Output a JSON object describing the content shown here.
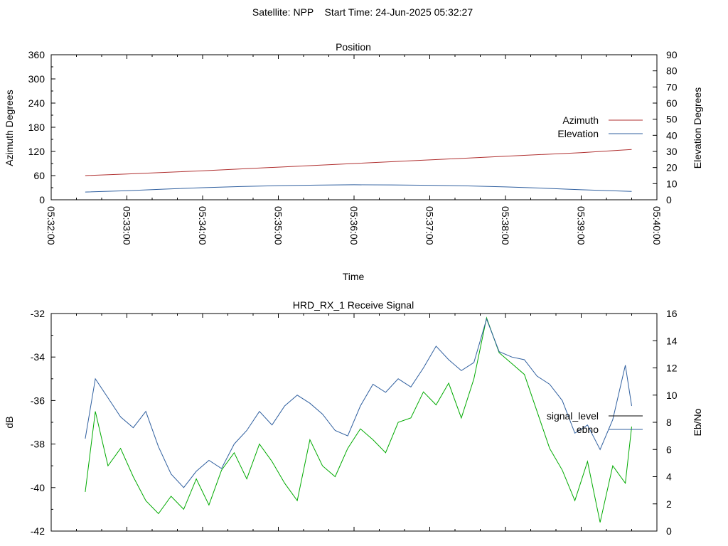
{
  "header": {
    "title": "Satellite: NPP    Start Time: 24-Jun-2025 05:32:27"
  },
  "chart_data": [
    {
      "type": "line",
      "title": "Position",
      "xlabel": "Time",
      "ylabel_left": "Azimuth Degrees",
      "ylabel_right": "Elevation Degrees",
      "x_ticks": [
        "05:32:00",
        "05:33:00",
        "05:34:00",
        "05:35:00",
        "05:36:00",
        "05:37:00",
        "05:38:00",
        "05:39:00",
        "05:40:00"
      ],
      "y_left_ticks": [
        "0",
        "60",
        "120",
        "180",
        "240",
        "300",
        "360"
      ],
      "y_right_ticks": [
        "0",
        "10",
        "20",
        "30",
        "40",
        "50",
        "60",
        "70",
        "80",
        "90"
      ],
      "ylim_left": [
        0,
        360
      ],
      "ylim_right": [
        0,
        90
      ],
      "xlim": [
        "05:32:00",
        "05:40:00"
      ],
      "grid": false,
      "legend_position": "right",
      "series": [
        {
          "name": "Azimuth",
          "axis": "left",
          "color": "#b03030",
          "x": [
            "05:32:27",
            "05:33:00",
            "05:34:00",
            "05:35:00",
            "05:36:00",
            "05:37:00",
            "05:38:00",
            "05:39:00",
            "05:39:40"
          ],
          "values": [
            60,
            64,
            72,
            81,
            90,
            99,
            108,
            117,
            125
          ]
        },
        {
          "name": "Elevation",
          "axis": "right",
          "color": "#2f5f9f",
          "x": [
            "05:32:27",
            "05:33:00",
            "05:33:30",
            "05:34:00",
            "05:34:30",
            "05:35:00",
            "05:35:30",
            "05:36:00",
            "05:36:30",
            "05:37:00",
            "05:37:30",
            "05:38:00",
            "05:38:30",
            "05:39:00",
            "05:39:40"
          ],
          "values": [
            4.8,
            5.6,
            6.6,
            7.5,
            8.2,
            8.8,
            9.1,
            9.3,
            9.2,
            9.0,
            8.6,
            8.0,
            7.2,
            6.2,
            5.2
          ]
        }
      ]
    },
    {
      "type": "line",
      "title": "HRD_RX_1 Receive Signal",
      "ylabel_left": "dB",
      "ylabel_right": "Eb/No",
      "y_left_ticks": [
        "-42",
        "-40",
        "-38",
        "-36",
        "-34",
        "-32"
      ],
      "y_right_ticks": [
        "0",
        "2",
        "4",
        "6",
        "8",
        "10",
        "12",
        "14",
        "16"
      ],
      "ylim_left": [
        -42,
        -32
      ],
      "ylim_right": [
        0,
        16
      ],
      "xlim": [
        "05:32:00",
        "05:40:00"
      ],
      "grid": false,
      "legend_position": "right",
      "series": [
        {
          "name": "signal_level",
          "axis": "left",
          "color": "#00aa00",
          "x": [
            "05:32:27",
            "05:32:35",
            "05:32:45",
            "05:32:55",
            "05:33:05",
            "05:33:15",
            "05:33:25",
            "05:33:35",
            "05:33:45",
            "05:33:55",
            "05:34:05",
            "05:34:15",
            "05:34:25",
            "05:34:35",
            "05:34:45",
            "05:34:55",
            "05:35:05",
            "05:35:15",
            "05:35:25",
            "05:35:35",
            "05:35:45",
            "05:35:55",
            "05:36:05",
            "05:36:15",
            "05:36:25",
            "05:36:35",
            "05:36:45",
            "05:36:55",
            "05:37:05",
            "05:37:15",
            "05:37:25",
            "05:37:35",
            "05:37:45",
            "05:37:55",
            "05:38:05",
            "05:38:15",
            "05:38:25",
            "05:38:35",
            "05:38:45",
            "05:38:55",
            "05:39:05",
            "05:39:15",
            "05:39:25",
            "05:39:35",
            "05:39:40"
          ],
          "values": [
            -40.2,
            -36.5,
            -39.0,
            -38.2,
            -39.5,
            -40.6,
            -41.2,
            -40.4,
            -41.0,
            -39.6,
            -40.8,
            -39.2,
            -38.4,
            -39.6,
            -38.0,
            -38.8,
            -39.8,
            -40.6,
            -37.8,
            -39.0,
            -39.5,
            -38.2,
            -37.3,
            -37.8,
            -38.4,
            -37.0,
            -36.8,
            -35.6,
            -36.2,
            -35.2,
            -36.8,
            -35.0,
            -32.2,
            -33.8,
            -34.3,
            -34.8,
            -36.5,
            -38.2,
            -39.2,
            -40.6,
            -38.8,
            -41.6,
            -39.0,
            -39.8,
            -37.2
          ]
        },
        {
          "name": "ebno",
          "axis": "right",
          "color": "#2f5f9f",
          "x": [
            "05:32:27",
            "05:32:35",
            "05:32:45",
            "05:32:55",
            "05:33:05",
            "05:33:15",
            "05:33:25",
            "05:33:35",
            "05:33:45",
            "05:33:55",
            "05:34:05",
            "05:34:15",
            "05:34:25",
            "05:34:35",
            "05:34:45",
            "05:34:55",
            "05:35:05",
            "05:35:15",
            "05:35:25",
            "05:35:35",
            "05:35:45",
            "05:35:55",
            "05:36:05",
            "05:36:15",
            "05:36:25",
            "05:36:35",
            "05:36:45",
            "05:36:55",
            "05:37:05",
            "05:37:15",
            "05:37:25",
            "05:37:35",
            "05:37:45",
            "05:37:55",
            "05:38:05",
            "05:38:15",
            "05:38:25",
            "05:38:35",
            "05:38:45",
            "05:38:55",
            "05:39:05",
            "05:39:15",
            "05:39:25",
            "05:39:35",
            "05:39:40"
          ],
          "values": [
            6.8,
            11.2,
            9.8,
            8.4,
            7.6,
            8.8,
            6.2,
            4.2,
            3.2,
            4.4,
            5.2,
            4.6,
            6.4,
            7.4,
            8.8,
            7.8,
            9.2,
            10.0,
            9.4,
            8.6,
            7.4,
            7.0,
            9.2,
            10.8,
            10.2,
            11.2,
            10.6,
            12.0,
            13.6,
            12.6,
            11.8,
            12.4,
            15.6,
            13.2,
            12.8,
            12.6,
            11.4,
            10.8,
            9.6,
            7.2,
            7.8,
            6.0,
            8.2,
            12.2,
            9.2
          ]
        }
      ]
    }
  ]
}
